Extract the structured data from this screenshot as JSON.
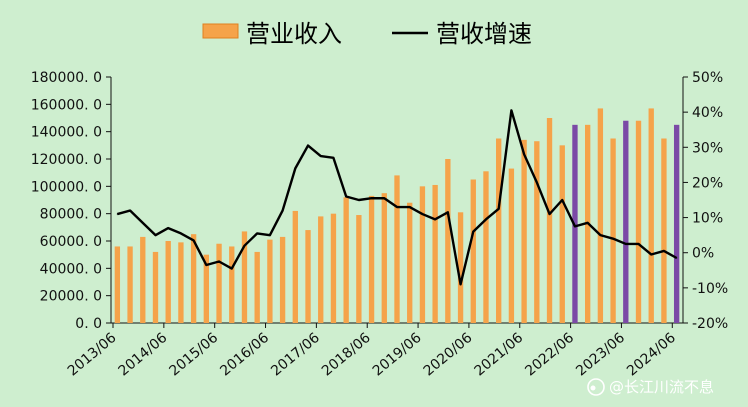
{
  "chart_data": {
    "type": "bar",
    "legend": {
      "placement": "top-center",
      "bar_label": "营业收入",
      "line_label": "营收增速"
    },
    "left_axis": {
      "ylim": [
        0,
        180000
      ],
      "ticks": [
        "180000. 0",
        "160000. 0",
        "140000. 0",
        "120000. 0",
        "100000. 0",
        "80000. 0",
        "60000. 0",
        "40000. 0",
        "20000. 0",
        "0. 0"
      ],
      "tick_values": [
        180000,
        160000,
        140000,
        120000,
        100000,
        80000,
        60000,
        40000,
        20000,
        0
      ]
    },
    "right_axis": {
      "ylim": [
        -20,
        50
      ],
      "ticks": [
        "50%",
        "40%",
        "30%",
        "20%",
        "10%",
        "0%",
        "-10%",
        "-20%"
      ],
      "tick_values": [
        50,
        40,
        30,
        20,
        10,
        0,
        -10,
        -20
      ]
    },
    "x_tick_labels": [
      "2013/06",
      "2014/06",
      "2015/06",
      "2016/06",
      "2017/06",
      "2018/06",
      "2019/06",
      "2020/06",
      "2021/06",
      "2022/06",
      "2023/06",
      "2024/06"
    ],
    "x_tick_index": [
      0,
      4,
      8,
      12,
      16,
      20,
      24,
      28,
      32,
      36,
      40,
      44
    ],
    "grid": false,
    "series": [
      {
        "name": "营业收入",
        "kind": "bar",
        "color": "#f5a34a",
        "highlight_color": "#7b4aa6",
        "values": [
          56000,
          56000,
          63000,
          52000,
          60000,
          59000,
          65000,
          50000,
          58000,
          56000,
          67000,
          52000,
          61000,
          63000,
          82000,
          68000,
          78000,
          80000,
          92000,
          79000,
          93000,
          95000,
          108000,
          88000,
          100000,
          101000,
          120000,
          81000,
          105000,
          111000,
          135000,
          113000,
          134000,
          133000,
          150000,
          130000,
          145000,
          145000,
          157000,
          135000,
          148000,
          148000,
          157000,
          135000,
          145000
        ],
        "highlight_indices": [
          36,
          40,
          44
        ]
      },
      {
        "name": "营收增速",
        "kind": "line",
        "color": "#000000",
        "values": [
          11,
          12,
          8.5,
          5,
          7,
          5.5,
          3.5,
          -3.5,
          -2.5,
          -4.5,
          2,
          5.5,
          5,
          12,
          24,
          30.5,
          27.5,
          27,
          16,
          15,
          15.5,
          15.5,
          13,
          13,
          11,
          9.5,
          11.5,
          -9,
          6,
          9.5,
          12.5,
          40.5,
          28,
          20,
          11,
          15,
          7.5,
          8.5,
          5,
          4,
          2.5,
          2.5,
          -0.5,
          0.5,
          -1.5
        ]
      }
    ]
  },
  "watermark": {
    "text": "@长江川流不息"
  }
}
